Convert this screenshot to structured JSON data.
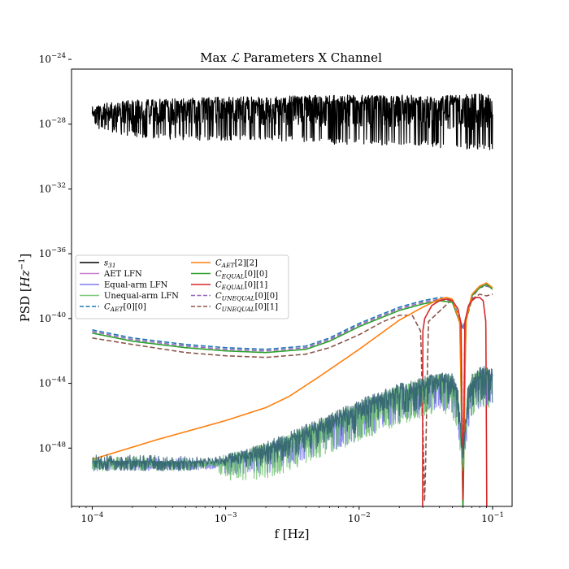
{
  "chart_data": {
    "type": "line",
    "title_prefix": "Max ",
    "title_symbol": "ℒ",
    "title_suffix": " Parameters X Channel",
    "xlabel": "f [Hz]",
    "ylabel_main": "PSD [",
    "ylabel_unit": "Hz",
    "ylabel_exp": "−1",
    "ylabel_close": "]",
    "x_scale": "log",
    "y_scale": "log",
    "xlim": [
      7e-05,
      0.14
    ],
    "ylim_log10": [
      -51.6,
      -24.6
    ],
    "grid": false,
    "legend_location": "center-left",
    "x_ticks": [
      {
        "base": "10",
        "exp": "−4",
        "value": 0.0001
      },
      {
        "base": "10",
        "exp": "−3",
        "value": 0.001
      },
      {
        "base": "10",
        "exp": "−2",
        "value": 0.01
      },
      {
        "base": "10",
        "exp": "−1",
        "value": 0.1
      }
    ],
    "y_ticks": [
      {
        "base": "10",
        "exp": "−24",
        "log10": -24
      },
      {
        "base": "10",
        "exp": "−28",
        "log10": -28
      },
      {
        "base": "10",
        "exp": "−32",
        "log10": -32
      },
      {
        "base": "10",
        "exp": "−36",
        "log10": -36
      },
      {
        "base": "10",
        "exp": "−40",
        "log10": -40
      },
      {
        "base": "10",
        "exp": "−44",
        "log10": -44
      },
      {
        "base": "10",
        "exp": "−48",
        "log10": -48
      }
    ],
    "legend_col1": [
      {
        "name": "s",
        "sub": "31",
        "color": "#000000",
        "dash": false
      },
      {
        "name": "AET LFN",
        "sub": "",
        "color": "#c77fd0",
        "dash": false
      },
      {
        "name": "Equal-arm LFN",
        "sub": "",
        "color": "#7b7bf0",
        "dash": false
      },
      {
        "name": "Unequal-arm LFN",
        "sub": "",
        "color": "#7fc97f",
        "dash": false
      },
      {
        "name": "C",
        "sub": "AET",
        "suffix": "[0][0]",
        "color": "#1f77b4",
        "dash": true
      }
    ],
    "legend_col2": [
      {
        "name": "C",
        "sub": "AET",
        "suffix": "[2][2]",
        "color": "#ff7f0e",
        "dash": false
      },
      {
        "name": "C",
        "sub": "EQUAL",
        "suffix": "[0][0]",
        "color": "#2ca02c",
        "dash": false
      },
      {
        "name": "C",
        "sub": "EQUAL",
        "suffix": "[0][1]",
        "color": "#d62728",
        "dash": false
      },
      {
        "name": "C",
        "sub": "UNEQUAL",
        "suffix": "[0][0]",
        "color": "#9467bd",
        "dash": true
      },
      {
        "name": "C",
        "sub": "UNEQUAL",
        "suffix": "[0][1]",
        "color": "#8c564b",
        "dash": true
      }
    ],
    "series": [
      {
        "name": "s_31",
        "style": "noisy",
        "color": "#000000",
        "x": [
          0.0001,
          0.0002,
          0.0005,
          0.001,
          0.002,
          0.005,
          0.01,
          0.02,
          0.05,
          0.1
        ],
        "log10_y": [
          -26.8,
          -26.5,
          -26.4,
          -26.3,
          -26.3,
          -26.2,
          -26.2,
          -26.2,
          -26.2,
          -26.1
        ],
        "dips_log10": [
          -28.2,
          -28.8,
          -29.0,
          -29.0,
          -29.0,
          -29.2,
          -29.3,
          -29.3,
          -29.5,
          -29.6
        ]
      },
      {
        "name": "C_AET[0][0]",
        "style": "dashed",
        "color": "#1f77b4",
        "x": [
          0.0001,
          0.0002,
          0.0005,
          0.001,
          0.002,
          0.004,
          0.006,
          0.01,
          0.02,
          0.03,
          0.04,
          0.05,
          0.06,
          0.07,
          0.08,
          0.09,
          0.1
        ],
        "log10_y": [
          -40.7,
          -41.2,
          -41.6,
          -41.8,
          -41.9,
          -41.7,
          -41.2,
          -40.3,
          -39.3,
          -38.9,
          -38.7,
          -38.8,
          -40.6,
          -38.6,
          -38.0,
          -37.9,
          -38.0
        ]
      },
      {
        "name": "C_UNEQUAL[0][0]",
        "style": "dashed",
        "color": "#9467bd",
        "x": [
          0.0001,
          0.0002,
          0.0005,
          0.001,
          0.002,
          0.004,
          0.006,
          0.01,
          0.02,
          0.03,
          0.04,
          0.05,
          0.06,
          0.07,
          0.08,
          0.09,
          0.1
        ],
        "log10_y": [
          -40.8,
          -41.3,
          -41.7,
          -41.9,
          -42.0,
          -41.8,
          -41.3,
          -40.4,
          -39.4,
          -39.0,
          -38.8,
          -38.9,
          -40.7,
          -38.7,
          -38.1,
          -38.0,
          -38.1
        ]
      },
      {
        "name": "C_UNEQUAL[0][1]",
        "style": "dashed",
        "color": "#8c564b",
        "x": [
          0.0001,
          0.0002,
          0.0005,
          0.001,
          0.002,
          0.004,
          0.006,
          0.01,
          0.015,
          0.02,
          0.025,
          0.029,
          0.031,
          0.033,
          0.05,
          0.058,
          0.06,
          0.062,
          0.07,
          0.08,
          0.09,
          0.1
        ],
        "log10_y": [
          -41.2,
          -41.6,
          -42.1,
          -42.3,
          -42.4,
          -42.2,
          -41.8,
          -41.0,
          -40.2,
          -39.8,
          -39.8,
          -40.8,
          -51.8,
          -40.2,
          -38.8,
          -40.5,
          -51.8,
          -40.4,
          -38.8,
          -38.5,
          -38.6,
          -38.5
        ]
      },
      {
        "name": "C_EQUAL[0][0]",
        "style": "solid",
        "color": "#2ca02c",
        "x": [
          0.0001,
          0.0002,
          0.0005,
          0.001,
          0.002,
          0.004,
          0.006,
          0.01,
          0.02,
          0.03,
          0.04,
          0.05,
          0.057,
          0.06,
          0.063,
          0.07,
          0.08,
          0.09,
          0.1
        ],
        "log10_y": [
          -40.9,
          -41.4,
          -41.8,
          -42.0,
          -42.1,
          -41.9,
          -41.4,
          -40.5,
          -39.5,
          -39.1,
          -38.9,
          -39.0,
          -40.3,
          -52.0,
          -40.2,
          -38.6,
          -38.1,
          -37.9,
          -38.2
        ]
      },
      {
        "name": "C_AET[2][2]",
        "style": "solid",
        "color": "#ff7f0e",
        "x": [
          0.0001,
          0.0003,
          0.001,
          0.002,
          0.003,
          0.005,
          0.01,
          0.02,
          0.03,
          0.04,
          0.045,
          0.05,
          0.057,
          0.06,
          0.063,
          0.07,
          0.08,
          0.09,
          0.1
        ],
        "log10_y": [
          -48.7,
          -47.5,
          -46.3,
          -45.5,
          -44.8,
          -43.6,
          -41.9,
          -40.1,
          -39.3,
          -38.8,
          -38.7,
          -38.8,
          -40.3,
          -51.0,
          -40.2,
          -38.5,
          -38.0,
          -37.8,
          -38.1
        ]
      },
      {
        "name": "C_EQUAL[0][1]",
        "style": "solid",
        "color": "#d62728",
        "x": [
          0.0299,
          0.03,
          0.031,
          0.035,
          0.04,
          0.045,
          0.05,
          0.055,
          0.058,
          0.06,
          0.062,
          0.066,
          0.07,
          0.075,
          0.08,
          0.085,
          0.089,
          0.0905
        ],
        "log10_y": [
          -51.8,
          -40.8,
          -40.0,
          -39.2,
          -38.9,
          -38.8,
          -38.9,
          -39.4,
          -40.3,
          -51.5,
          -40.2,
          -39.2,
          -38.9,
          -38.7,
          -38.7,
          -38.9,
          -40.2,
          -51.8
        ]
      },
      {
        "name": "Equal-arm LFN",
        "style": "noisy",
        "color": "#6a6ae8",
        "opacity": 0.75,
        "x": [
          0.0001,
          0.0002,
          0.0005,
          0.0008,
          0.001,
          0.002,
          0.005,
          0.01,
          0.02,
          0.03,
          0.04,
          0.05,
          0.055,
          0.06,
          0.065,
          0.07,
          0.08,
          0.09,
          0.1
        ],
        "log10_y": [
          -48.8,
          -48.8,
          -48.8,
          -48.7,
          -48.5,
          -47.8,
          -46.4,
          -45.2,
          -44.2,
          -43.8,
          -43.5,
          -43.6,
          -44.5,
          -48.5,
          -44.5,
          -43.6,
          -43.2,
          -43.1,
          -43.3
        ],
        "dips_log10": [
          -48.9,
          -48.9,
          -49.0,
          -49.2,
          -49.6,
          -49.6,
          -48.5,
          -47.5,
          -46.5,
          -46.0,
          -45.6,
          -46.0,
          -47.0,
          -49.6,
          -47.0,
          -46.0,
          -45.5,
          -45.4,
          -45.6
        ]
      },
      {
        "name": "Unequal-arm LFN",
        "style": "noisy",
        "color": "#5cb85c",
        "opacity": 0.75,
        "x": [
          0.0001,
          0.0002,
          0.0005,
          0.0008,
          0.001,
          0.002,
          0.005,
          0.01,
          0.02,
          0.03,
          0.04,
          0.05,
          0.055,
          0.06,
          0.065,
          0.07,
          0.08,
          0.09,
          0.1
        ],
        "log10_y": [
          -48.8,
          -48.8,
          -48.8,
          -48.6,
          -48.4,
          -47.7,
          -46.3,
          -45.1,
          -44.1,
          -43.7,
          -43.4,
          -43.5,
          -44.4,
          -48.4,
          -44.4,
          -43.5,
          -43.1,
          -43.0,
          -43.2
        ],
        "dips_log10": [
          -48.9,
          -48.9,
          -49.0,
          -49.3,
          -50.0,
          -50.0,
          -48.6,
          -47.6,
          -46.6,
          -46.1,
          -45.7,
          -46.1,
          -47.1,
          -49.8,
          -47.1,
          -46.1,
          -45.6,
          -45.5,
          -45.7
        ]
      },
      {
        "name": "AET LFN",
        "style": "noisy",
        "color": "#2f5f6f",
        "opacity": 0.85,
        "x": [
          0.0001,
          0.0002,
          0.0005,
          0.0008,
          0.001,
          0.002,
          0.005,
          0.01,
          0.02,
          0.03,
          0.04,
          0.05,
          0.055,
          0.06,
          0.065,
          0.07,
          0.08,
          0.09,
          0.1
        ],
        "log10_y": [
          -48.8,
          -48.8,
          -48.8,
          -48.6,
          -48.4,
          -47.6,
          -46.2,
          -45.0,
          -44.0,
          -43.6,
          -43.3,
          -43.4,
          -44.3,
          -48.3,
          -44.3,
          -43.4,
          -43.0,
          -42.9,
          -43.1
        ],
        "dips_log10": [
          -48.8,
          -48.8,
          -48.9,
          -49.0,
          -49.2,
          -49.2,
          -48.0,
          -47.0,
          -46.0,
          -45.6,
          -45.2,
          -45.6,
          -46.6,
          -49.2,
          -46.6,
          -45.6,
          -45.1,
          -45.0,
          -45.2
        ]
      }
    ]
  }
}
